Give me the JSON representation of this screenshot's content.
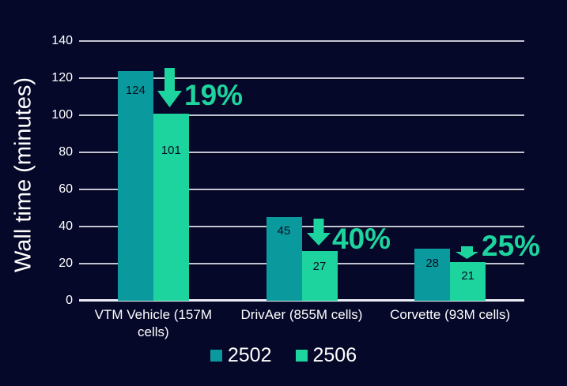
{
  "chart_data": {
    "type": "bar",
    "title": "",
    "xlabel": "",
    "ylabel": "Wall time (minutes)",
    "ylim": [
      0,
      140
    ],
    "yticks": [
      0,
      20,
      40,
      60,
      80,
      100,
      120,
      140
    ],
    "grid": true,
    "legend_position": "bottom",
    "background_color": "#060829",
    "gridline_color": "#c3c5d6",
    "categories": [
      "VTM Vehicle (157M cells)",
      "DrivAer (855M cells)",
      "Corvette (93M cells)"
    ],
    "series": [
      {
        "name": "2502",
        "color": "#0a999c",
        "values": [
          124,
          45,
          28
        ]
      },
      {
        "name": "2506",
        "color": "#1ed49e",
        "values": [
          101,
          27,
          21
        ]
      }
    ],
    "annotations": [
      {
        "label": "19%",
        "category": "VTM Vehicle (157M cells)",
        "icon": "down-arrow-icon",
        "color": "#1ed49e"
      },
      {
        "label": "40%",
        "category": "DrivAer (855M cells)",
        "icon": "down-arrow-icon",
        "color": "#1ed49e"
      },
      {
        "label": "25%",
        "category": "Corvette (93M cells)",
        "icon": "down-arrow-icon",
        "color": "#1ed49e"
      }
    ]
  },
  "legend": {
    "items": [
      {
        "label": "2502",
        "color": "#0a999c"
      },
      {
        "label": "2506",
        "color": "#1ed49e"
      }
    ]
  }
}
